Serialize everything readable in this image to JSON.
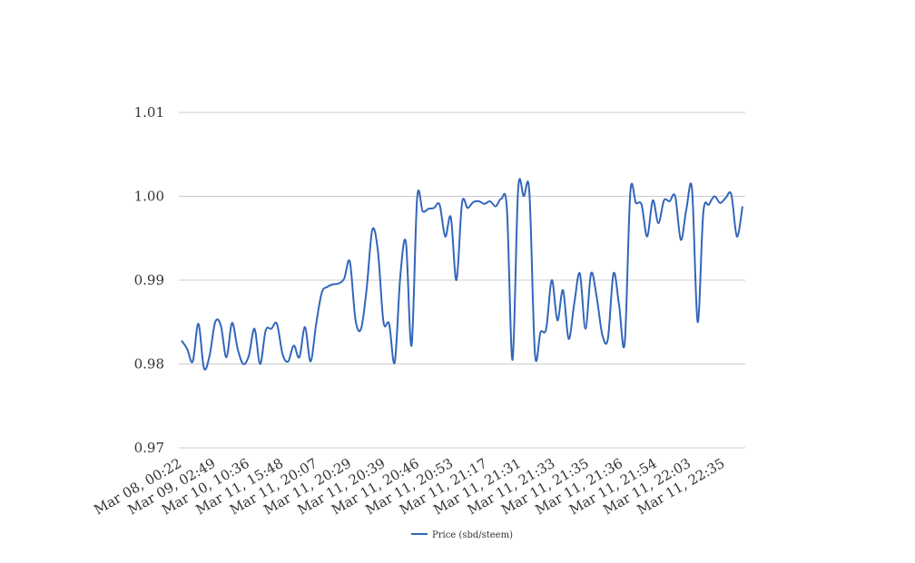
{
  "chart_data": {
    "type": "line",
    "title": "",
    "xlabel": "",
    "ylabel": "",
    "ylim": [
      0.97,
      1.01
    ],
    "y_ticks": [
      "0.97",
      "0.98",
      "0.99",
      "1.00",
      "1.01"
    ],
    "x_tick_labels": [
      "Mar 08, 00:22",
      "Mar 09, 02:49",
      "Mar 10, 10:36",
      "Mar 11, 15:48",
      "Mar 11, 20:07",
      "Mar 11, 20:29",
      "Mar 11, 20:39",
      "Mar 11, 20:46",
      "Mar 11, 20:53",
      "Mar 11, 21:17",
      "Mar 11, 21:31",
      "Mar 11, 21:33",
      "Mar 11, 21:35",
      "Mar 11, 21:36",
      "Mar 11, 21:54",
      "Mar 11, 22:03",
      "Mar 11, 22:35"
    ],
    "grid": "horizontal",
    "legend_position": "bottom",
    "series": [
      {
        "name": "Price (sbd/steem)",
        "color": "#3366bb",
        "values": [
          0.9828,
          0.9818,
          0.9803,
          0.9848,
          0.9795,
          0.981,
          0.985,
          0.9846,
          0.9808,
          0.9849,
          0.9818,
          0.98,
          0.981,
          0.9842,
          0.98,
          0.984,
          0.9842,
          0.9848,
          0.9812,
          0.9803,
          0.9822,
          0.9808,
          0.9844,
          0.9803,
          0.9848,
          0.9885,
          0.9892,
          0.9895,
          0.9896,
          0.9902,
          0.9922,
          0.9853,
          0.9842,
          0.989,
          0.996,
          0.9935,
          0.985,
          0.9848,
          0.9802,
          0.9905,
          0.9945,
          0.9822,
          0.9998,
          0.9982,
          0.9985,
          0.9986,
          0.999,
          0.9952,
          0.9975,
          0.99,
          0.9992,
          0.9986,
          0.9993,
          0.9994,
          0.9991,
          0.9994,
          0.9988,
          0.9997,
          0.9985,
          0.9805,
          1.0008,
          1.0,
          1.0005,
          0.9812,
          0.9838,
          0.9842,
          0.99,
          0.9852,
          0.9888,
          0.983,
          0.9872,
          0.9908,
          0.9842,
          0.9908,
          0.988,
          0.9835,
          0.983,
          0.9908,
          0.987,
          0.9825,
          1.0005,
          0.9992,
          0.999,
          0.9952,
          0.9995,
          0.9968,
          0.9995,
          0.9994,
          1.0,
          0.9948,
          0.9985,
          1.0008,
          0.985,
          0.998,
          0.999,
          1.0,
          0.9992,
          0.9998,
          1.0002,
          0.9952,
          0.9988
        ]
      }
    ]
  }
}
